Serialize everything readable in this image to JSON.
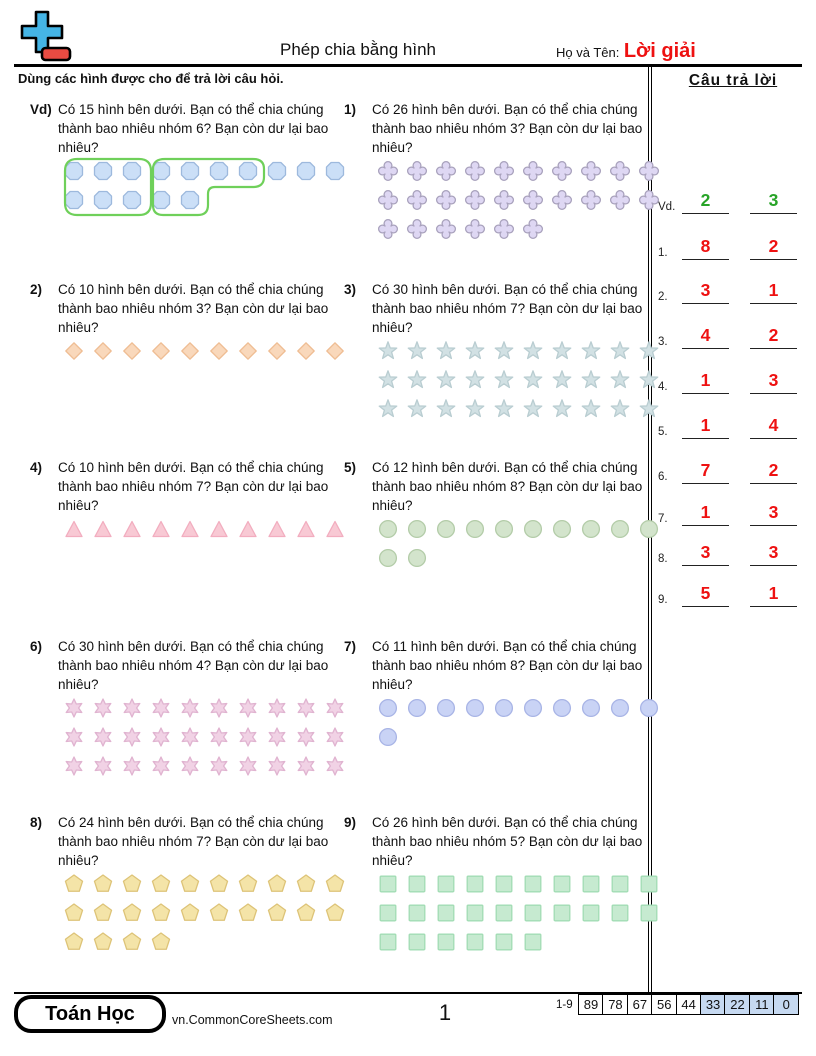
{
  "header": {
    "title": "Phép chia bằng hình",
    "name_label": "Họ và Tên:",
    "name_value": "Lời giải",
    "name_value_color": "#ee1111",
    "instruction": "Dùng các hình được cho để trả lời câu hỏi."
  },
  "answers": {
    "title": "Câu trả lời",
    "rows": [
      {
        "label": "Vd.",
        "quotient": "2",
        "remainder": "3",
        "color": "#28a428"
      },
      {
        "label": "1.",
        "quotient": "8",
        "remainder": "2",
        "color": "#ee1111"
      },
      {
        "label": "2.",
        "quotient": "3",
        "remainder": "1",
        "color": "#ee1111"
      },
      {
        "label": "3.",
        "quotient": "4",
        "remainder": "2",
        "color": "#ee1111"
      },
      {
        "label": "4.",
        "quotient": "1",
        "remainder": "3",
        "color": "#ee1111"
      },
      {
        "label": "5.",
        "quotient": "1",
        "remainder": "4",
        "color": "#ee1111"
      },
      {
        "label": "6.",
        "quotient": "7",
        "remainder": "2",
        "color": "#ee1111"
      },
      {
        "label": "7.",
        "quotient": "1",
        "remainder": "3",
        "color": "#ee1111"
      },
      {
        "label": "8.",
        "quotient": "3",
        "remainder": "3",
        "color": "#ee1111"
      },
      {
        "label": "9.",
        "quotient": "5",
        "remainder": "1",
        "color": "#ee1111"
      }
    ]
  },
  "problems": [
    {
      "label": "Vd)",
      "text": "Có 15 hình bên dưới. Bạn có thể chia chúng thành bao nhiêu nhóm 6? Bạn còn dư lại bao nhiêu?",
      "shape": "octagon",
      "rows": [
        10,
        5
      ],
      "fill": "#cbdff7",
      "stroke": "#9db9dd",
      "loops": true,
      "loop_color": "#6fd05a"
    },
    {
      "label": "1)",
      "text": "Có 26 hình bên dưới. Bạn có thể chia chúng thành bao nhiêu nhóm 3? Bạn còn dư lại bao nhiêu?",
      "shape": "quatrefoil",
      "rows": [
        10,
        10,
        6
      ],
      "fill": "#ded7f3",
      "stroke": "#a9a2bd"
    },
    {
      "label": "2)",
      "text": "Có 10 hình bên dưới. Bạn có thể chia chúng thành bao nhiêu nhóm 3? Bạn còn dư lại bao nhiêu?",
      "shape": "diamond",
      "rows": [
        10
      ],
      "fill": "#f9d8bb",
      "stroke": "#efbd93"
    },
    {
      "label": "3)",
      "text": "Có 30 hình bên dưới. Bạn có thể chia chúng thành bao nhiêu nhóm 7? Bạn còn dư lại bao nhiêu?",
      "shape": "star5",
      "rows": [
        10,
        10,
        10
      ],
      "fill": "#d2e1e4",
      "stroke": "#b9cdd1"
    },
    {
      "label": "4)",
      "text": "Có 10 hình bên dưới. Bạn có thể chia chúng thành bao nhiêu nhóm 7? Bạn còn dư lại bao nhiêu?",
      "shape": "triangle",
      "rows": [
        10
      ],
      "fill": "#f8c9d4",
      "stroke": "#f2adbf"
    },
    {
      "label": "5)",
      "text": "Có 12 hình bên dưới. Bạn có thể chia chúng thành bao nhiêu nhóm 8? Bạn còn dư lại bao nhiêu?",
      "shape": "circle",
      "rows": [
        10,
        2
      ],
      "fill": "#d3e4cc",
      "stroke": "#b3cca8"
    },
    {
      "label": "6)",
      "text": "Có 30 hình bên dưới. Bạn có thể chia chúng thành bao nhiêu nhóm 4? Bạn còn dư lại bao nhiêu?",
      "shape": "star6",
      "rows": [
        10,
        10,
        10
      ],
      "fill": "#f1d2e5",
      "stroke": "#e0b3d0"
    },
    {
      "label": "7)",
      "text": "Có 11 hình bên dưới. Bạn có thể chia chúng thành bao nhiêu nhóm 8? Bạn còn dư lại bao nhiêu?",
      "shape": "circle",
      "rows": [
        10,
        1
      ],
      "fill": "#c9d3f5",
      "stroke": "#a8b4e6"
    },
    {
      "label": "8)",
      "text": "Có 24 hình bên dưới. Bạn có thể chia chúng thành bao nhiêu nhóm 7? Bạn còn dư lại bao nhiêu?",
      "shape": "pentagon",
      "rows": [
        10,
        10,
        4
      ],
      "fill": "#f4e4a8",
      "stroke": "#ddc377"
    },
    {
      "label": "9)",
      "text": "Có 26 hình bên dưới. Bạn có thể chia chúng thành bao nhiêu nhóm 5? Bạn còn dư lại bao nhiêu?",
      "shape": "square",
      "rows": [
        10,
        10,
        6
      ],
      "fill": "#c6ead0",
      "stroke": "#a2dcb4"
    }
  ],
  "footer": {
    "brand": "Toán Học",
    "website": "vn.CommonCoreSheets.com",
    "page_number": "1",
    "score_label": "1-9",
    "score_cells": [
      {
        "value": "89",
        "highlighted": false
      },
      {
        "value": "78",
        "highlighted": false
      },
      {
        "value": "67",
        "highlighted": false
      },
      {
        "value": "56",
        "highlighted": false
      },
      {
        "value": "44",
        "highlighted": false
      },
      {
        "value": "33",
        "highlighted": true
      },
      {
        "value": "22",
        "highlighted": true
      },
      {
        "value": "11",
        "highlighted": true
      },
      {
        "value": "0",
        "highlighted": true
      }
    ],
    "highlight_color": "#c6d9f1"
  },
  "logo_colors": {
    "plus": "#45b5e6",
    "minus": "#e84b42"
  }
}
